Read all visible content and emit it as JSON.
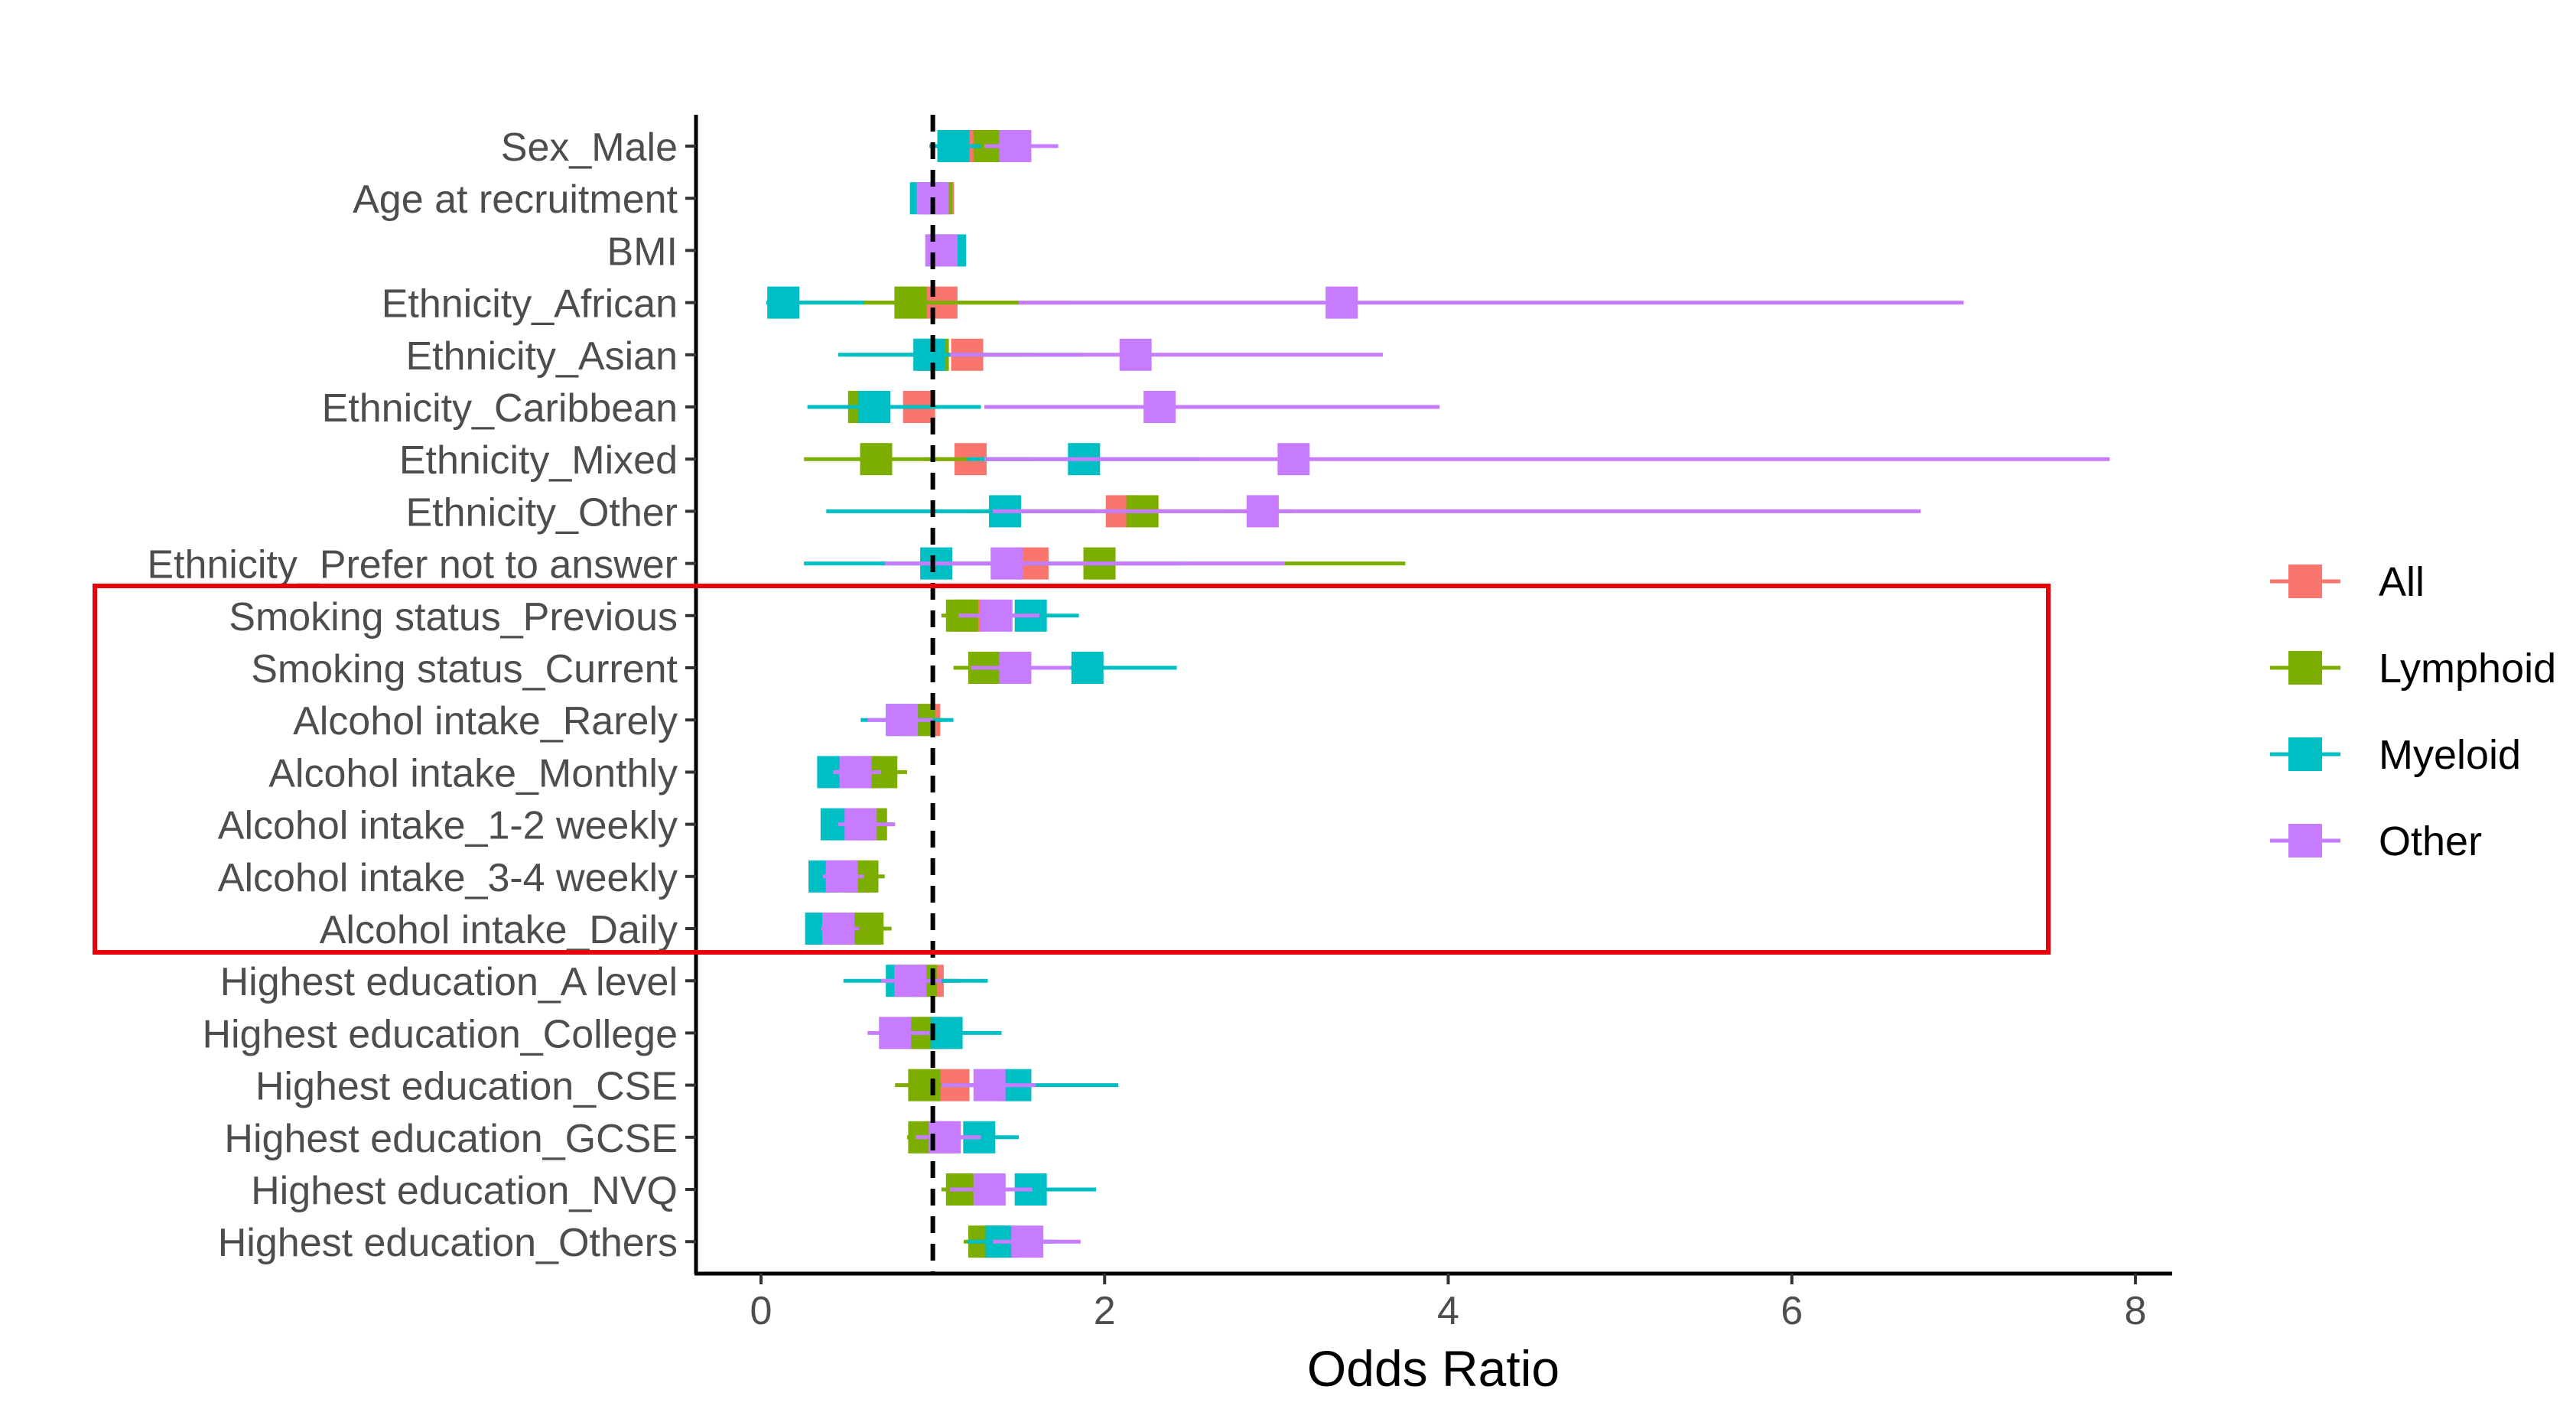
{
  "chart_data": {
    "type": "forest",
    "xlabel": "Odds Ratio",
    "xlim": [
      -0.2,
      8.2
    ],
    "x_ticks": [
      0,
      2,
      4,
      6,
      8
    ],
    "x_tick_labels": [
      "0",
      "2",
      "4",
      "6",
      "8"
    ],
    "reference_line": 1,
    "grid": false,
    "legend_placement": "right",
    "categories": [
      "Sex_Male",
      "Age at recruitment",
      "BMI",
      "Ethnicity_African",
      "Ethnicity_Asian",
      "Ethnicity_Caribbean",
      "Ethnicity_Mixed",
      "Ethnicity_Other",
      "Ethnicity_Prefer not to answer",
      "Smoking status_Previous",
      "Smoking status_Current",
      "Alcohol intake_Rarely",
      "Alcohol intake_Monthly",
      "Alcohol intake_1-2 weekly",
      "Alcohol intake_3-4 weekly",
      "Alcohol intake_Daily",
      "Highest education_A level",
      "Highest education_College",
      "Highest education_CSE",
      "Highest education_GCSE",
      "Highest education_NVQ",
      "Highest education_Others"
    ],
    "series": [
      {
        "name": "All",
        "color": "#F8766D",
        "or": [
          1.3,
          1.03,
          1.06,
          1.05,
          1.2,
          0.92,
          1.22,
          2.1,
          1.58,
          1.22,
          1.38,
          0.95,
          0.62,
          0.6,
          0.55,
          0.55,
          0.97,
          0.98,
          1.12,
          1.05,
          1.24,
          1.35
        ],
        "lo": [
          1.22,
          0.98,
          1.02,
          0.6,
          0.98,
          0.75,
          0.95,
          1.5,
          1.0,
          1.14,
          1.26,
          0.85,
          0.5,
          0.48,
          0.45,
          0.42,
          0.8,
          0.85,
          0.96,
          0.95,
          1.1,
          1.25
        ],
        "hi": [
          1.4,
          1.08,
          1.1,
          1.8,
          1.5,
          1.2,
          1.6,
          2.7,
          2.4,
          1.32,
          1.52,
          1.05,
          0.75,
          0.72,
          0.65,
          0.65,
          1.15,
          1.12,
          1.3,
          1.18,
          1.4,
          1.48
        ]
      },
      {
        "name": "Lymphoid",
        "color": "#7CAE00",
        "or": [
          1.33,
          1.02,
          1.05,
          0.87,
          1.0,
          0.6,
          0.67,
          2.22,
          1.97,
          1.17,
          1.3,
          0.92,
          0.7,
          0.64,
          0.59,
          0.62,
          0.93,
          0.94,
          0.95,
          0.95,
          1.17,
          1.3
        ],
        "lo": [
          1.2,
          0.98,
          1.0,
          0.2,
          0.55,
          0.3,
          0.25,
          1.2,
          0.7,
          1.05,
          1.12,
          0.78,
          0.55,
          0.5,
          0.45,
          0.48,
          0.75,
          0.78,
          0.78,
          0.85,
          1.05,
          1.18
        ],
        "hi": [
          1.48,
          1.07,
          1.1,
          1.55,
          1.6,
          1.15,
          1.55,
          3.1,
          3.75,
          1.3,
          1.5,
          1.06,
          0.85,
          0.78,
          0.72,
          0.76,
          1.1,
          1.12,
          1.15,
          1.08,
          1.3,
          1.42
        ]
      },
      {
        "name": "Myeloid",
        "color": "#00BFC4",
        "or": [
          1.12,
          0.96,
          1.1,
          0.13,
          0.98,
          0.66,
          1.88,
          1.42,
          1.02,
          1.57,
          1.9,
          0.82,
          0.42,
          0.44,
          0.37,
          0.35,
          0.82,
          1.08,
          1.48,
          1.27,
          1.57,
          1.4
        ],
        "lo": [
          0.98,
          0.92,
          1.05,
          0.03,
          0.45,
          0.27,
          1.2,
          0.38,
          0.25,
          1.35,
          1.5,
          0.58,
          0.35,
          0.37,
          0.32,
          0.3,
          0.48,
          0.85,
          1.1,
          0.98,
          1.25,
          1.2
        ],
        "hi": [
          1.28,
          1.0,
          1.15,
          0.6,
          1.88,
          1.28,
          2.55,
          1.95,
          2.45,
          1.85,
          2.42,
          1.12,
          0.55,
          0.55,
          0.46,
          0.44,
          1.32,
          1.4,
          2.08,
          1.5,
          1.95,
          1.72
        ]
      },
      {
        "name": "Other",
        "color": "#C77CFF",
        "or": [
          1.48,
          1.0,
          1.05,
          3.38,
          2.18,
          2.32,
          3.1,
          2.92,
          1.43,
          1.37,
          1.48,
          0.82,
          0.55,
          0.58,
          0.47,
          0.45,
          0.87,
          0.78,
          1.33,
          1.07,
          1.33,
          1.55
        ],
        "lo": [
          1.3,
          0.95,
          1.0,
          1.5,
          1.1,
          1.3,
          1.3,
          1.35,
          0.72,
          1.15,
          1.22,
          0.62,
          0.42,
          0.45,
          0.36,
          0.35,
          0.7,
          0.62,
          1.05,
          0.9,
          1.1,
          1.35
        ],
        "hi": [
          1.73,
          1.05,
          1.1,
          7.0,
          3.62,
          3.95,
          7.85,
          6.75,
          3.05,
          1.62,
          1.8,
          1.0,
          0.7,
          0.78,
          0.6,
          0.57,
          1.05,
          0.98,
          1.6,
          1.28,
          1.58,
          1.86
        ]
      }
    ]
  }
}
